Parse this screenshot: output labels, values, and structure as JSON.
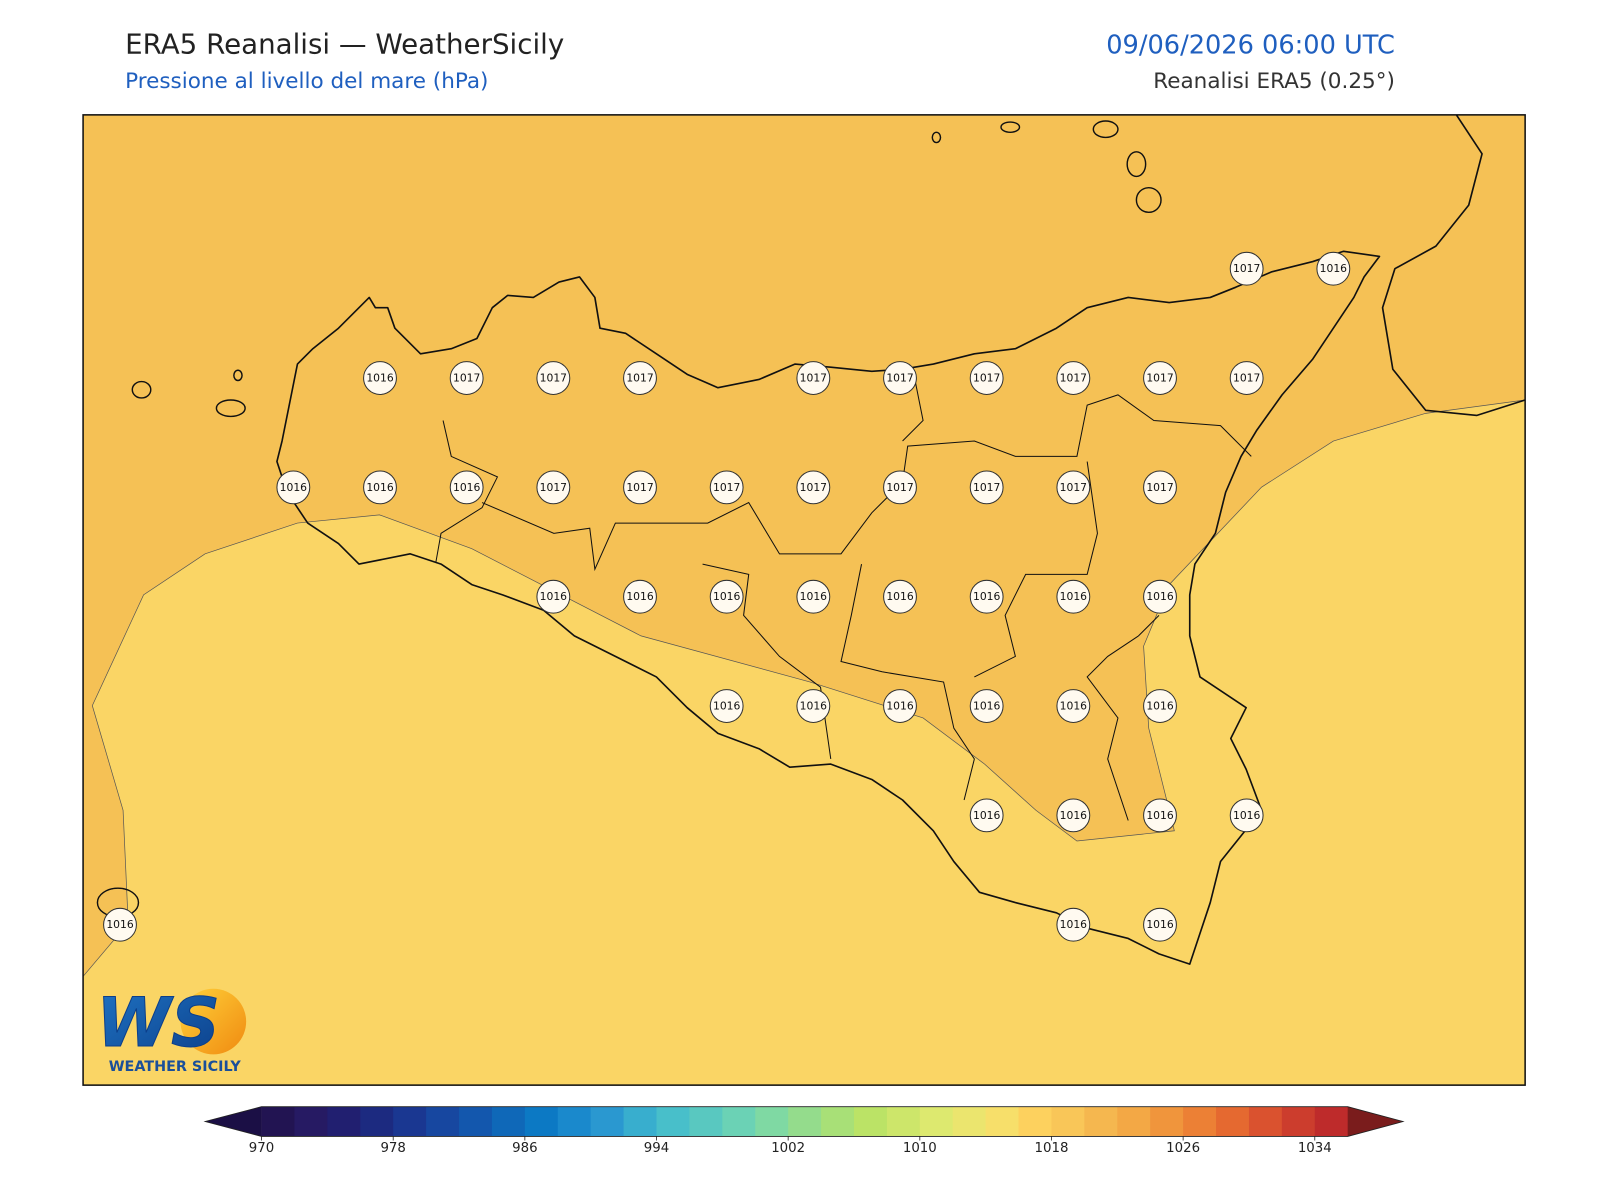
{
  "header": {
    "title": "ERA5 Reanalisi — WeatherSicily",
    "subtitle": "Pressione al livello del mare (hPa)",
    "datetime": "09/06/2026 06:00 UTC",
    "source": "Reanalisi ERA5 (0.25°)"
  },
  "stations": [
    [
      null,
      null,
      null,
      null,
      null,
      null,
      null,
      null,
      null,
      null,
      null,
      null,
      null,
      1017,
      1016
    ],
    [
      null,
      null,
      null,
      1016,
      1017,
      1017,
      1017,
      null,
      1017,
      1017,
      1017,
      1017,
      1017,
      1017,
      null
    ],
    [
      null,
      null,
      1016,
      1016,
      1016,
      1017,
      1017,
      1017,
      1017,
      1017,
      1017,
      1017,
      1017,
      null,
      null
    ],
    [
      null,
      null,
      null,
      null,
      null,
      1016,
      1016,
      1016,
      1016,
      1016,
      1016,
      1016,
      1016,
      null,
      null
    ],
    [
      null,
      null,
      null,
      null,
      null,
      null,
      null,
      1016,
      1016,
      1016,
      1016,
      1016,
      1016,
      null,
      null
    ],
    [
      null,
      null,
      null,
      null,
      null,
      null,
      null,
      null,
      null,
      null,
      1016,
      1016,
      1016,
      1016,
      null
    ],
    [
      1016,
      null,
      null,
      null,
      null,
      null,
      null,
      null,
      null,
      null,
      null,
      1016,
      1016,
      null,
      null
    ]
  ],
  "colorbar": {
    "lim": [
      970,
      1036
    ],
    "ticks": [
      970,
      978,
      986,
      994,
      1002,
      1010,
      1018,
      1026,
      1034
    ],
    "colors": [
      "#221452",
      "#261a63",
      "#211f70",
      "#1c2a80",
      "#1a3791",
      "#1747a0",
      "#1357ad",
      "#0f68b8",
      "#0c79c4",
      "#1a89cc",
      "#2a98d0",
      "#38aece",
      "#48bfca",
      "#59c8c0",
      "#6bd2b5",
      "#7fd9a3",
      "#94dc8c",
      "#a8e077",
      "#bbe366",
      "#cde66a",
      "#dde96f",
      "#ebe56e",
      "#f7df6a",
      "#fdd15e",
      "#f9c658",
      "#f5b74f",
      "#f3a845",
      "#f0953c",
      "#ec8035",
      "#e56930",
      "#da522f",
      "#cc3d2d",
      "#be2b2b"
    ],
    "under_color": "#1b0f45",
    "over_color": "#7a1c1c"
  },
  "logo": {
    "mark": "WS",
    "name": "WEATHER SICILY"
  }
}
